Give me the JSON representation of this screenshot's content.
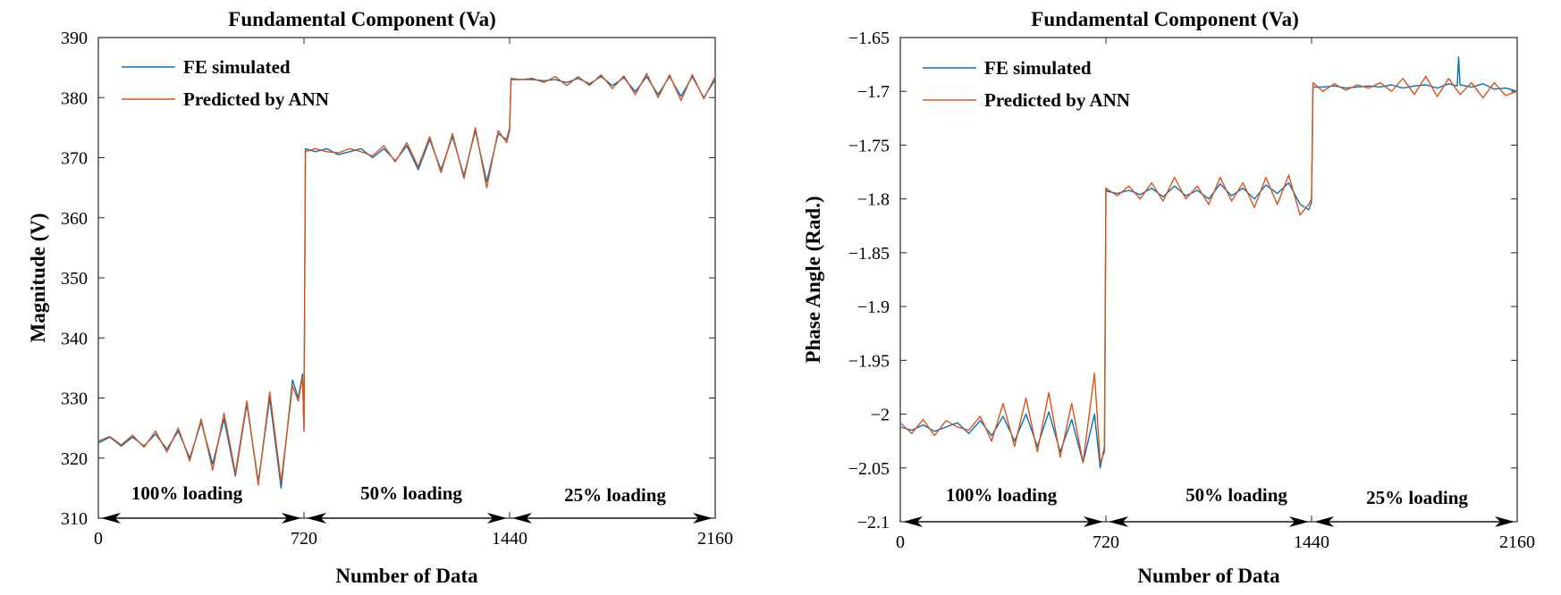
{
  "chart_data": [
    {
      "type": "line",
      "title": "Fundamental Component (Va)",
      "xlabel": "Number of Data",
      "ylabel": "Magnitude  (V)",
      "xlim": [
        0,
        2160
      ],
      "ylim": [
        310,
        390
      ],
      "xticks": [
        0,
        720,
        1440,
        2160
      ],
      "yticks": [
        310,
        320,
        330,
        340,
        350,
        360,
        370,
        380,
        390
      ],
      "ytick_labels": [
        "310",
        "320",
        "330",
        "340",
        "350",
        "360",
        "370",
        "380",
        "390"
      ],
      "grid": false,
      "legend": "top-left",
      "annotations": [
        "100% loading",
        "50% loading",
        "25% loading"
      ],
      "series": [
        {
          "name": "FE simulated",
          "color": "#0072BD",
          "x": [
            0,
            40,
            80,
            120,
            160,
            200,
            240,
            280,
            320,
            360,
            400,
            440,
            480,
            520,
            560,
            600,
            640,
            680,
            700,
            715,
            720,
            725,
            760,
            800,
            840,
            880,
            920,
            960,
            1000,
            1040,
            1080,
            1120,
            1160,
            1200,
            1240,
            1280,
            1320,
            1360,
            1400,
            1430,
            1440,
            1445,
            1480,
            1520,
            1560,
            1600,
            1640,
            1680,
            1720,
            1760,
            1800,
            1840,
            1880,
            1920,
            1960,
            2000,
            2040,
            2080,
            2120,
            2160
          ],
          "y": [
            322.5,
            323.5,
            322,
            323.5,
            322,
            324,
            321.5,
            324.5,
            320,
            326,
            319,
            326.5,
            317,
            329,
            316,
            330,
            315,
            333,
            330,
            334,
            325,
            371.5,
            371,
            371.5,
            370.5,
            371,
            371.5,
            370,
            371.5,
            369.5,
            372,
            368,
            373,
            368,
            373.5,
            367,
            374.5,
            366,
            374,
            373,
            375,
            383,
            383,
            383,
            382.8,
            383,
            382.5,
            383.2,
            382.3,
            383.5,
            382,
            383.3,
            381,
            383.5,
            380.5,
            383.5,
            380.2,
            383.5,
            380,
            383
          ]
        },
        {
          "name": "Predicted by ANN",
          "color": "#D95319",
          "x": [
            0,
            40,
            80,
            120,
            160,
            200,
            240,
            280,
            320,
            360,
            400,
            440,
            480,
            520,
            560,
            600,
            640,
            680,
            700,
            715,
            720,
            725,
            760,
            800,
            840,
            880,
            920,
            960,
            1000,
            1040,
            1080,
            1120,
            1160,
            1200,
            1240,
            1280,
            1320,
            1360,
            1400,
            1430,
            1440,
            1445,
            1480,
            1520,
            1560,
            1600,
            1640,
            1680,
            1720,
            1760,
            1800,
            1840,
            1880,
            1920,
            1960,
            2000,
            2040,
            2080,
            2120,
            2160
          ],
          "y": [
            322.8,
            323.6,
            322.2,
            323.8,
            321.8,
            324.5,
            321,
            325,
            319.5,
            326.5,
            318,
            327.5,
            317.5,
            329.5,
            315.5,
            331,
            316,
            332,
            329.5,
            333.5,
            324.5,
            371,
            371.5,
            371,
            370.8,
            371.5,
            371,
            370.3,
            372,
            369.3,
            372.5,
            368.5,
            373.5,
            367.5,
            374,
            366.5,
            375,
            365,
            374.5,
            372.5,
            374.5,
            383.2,
            383,
            383.2,
            382.5,
            383.5,
            382,
            383.5,
            382,
            383.8,
            381.5,
            383.6,
            380.5,
            384,
            380,
            383.8,
            379.5,
            383.8,
            379.8,
            383.5
          ]
        }
      ]
    },
    {
      "type": "line",
      "title": "Fundamental Component (Va)",
      "xlabel": "Number of Data",
      "ylabel": "Phase Angle (Rad.)",
      "xlim": [
        0,
        2160
      ],
      "ylim": [
        -2.1,
        -1.65
      ],
      "xticks": [
        0,
        720,
        1440,
        2160
      ],
      "yticks": [
        -2.1,
        -2.05,
        -2,
        -1.95,
        -1.9,
        -1.85,
        -1.8,
        -1.75,
        -1.7,
        -1.65
      ],
      "ytick_labels": [
        "−2.1",
        "−2.05",
        "−2",
        "−1.95",
        "−1.9",
        "−1.85",
        "−1.8",
        "−1.75",
        "−1.7",
        "−1.65"
      ],
      "grid": false,
      "legend": "top-left",
      "annotations": [
        "100% loading",
        "50% loading",
        "25% loading"
      ],
      "series": [
        {
          "name": "FE simulated",
          "color": "#0072BD",
          "x": [
            0,
            40,
            80,
            120,
            160,
            200,
            240,
            280,
            320,
            360,
            400,
            440,
            480,
            520,
            560,
            600,
            640,
            680,
            700,
            715,
            720,
            725,
            760,
            800,
            840,
            880,
            920,
            960,
            1000,
            1040,
            1080,
            1120,
            1160,
            1200,
            1240,
            1280,
            1320,
            1360,
            1400,
            1430,
            1440,
            1445,
            1480,
            1520,
            1560,
            1600,
            1640,
            1680,
            1720,
            1760,
            1800,
            1840,
            1880,
            1920,
            1950,
            1955,
            1960,
            2000,
            2040,
            2080,
            2120,
            2160
          ],
          "y": [
            -2.012,
            -2.015,
            -2.01,
            -2.016,
            -2.012,
            -2.008,
            -2.018,
            -2.006,
            -2.02,
            -2.002,
            -2.025,
            -2,
            -2.03,
            -1.998,
            -2.035,
            -2.005,
            -2.045,
            -2,
            -2.05,
            -2.03,
            -1.79,
            -1.793,
            -1.795,
            -1.792,
            -1.796,
            -1.79,
            -1.798,
            -1.788,
            -1.797,
            -1.792,
            -1.8,
            -1.786,
            -1.797,
            -1.79,
            -1.8,
            -1.787,
            -1.795,
            -1.785,
            -1.805,
            -1.81,
            -1.803,
            -1.696,
            -1.696,
            -1.695,
            -1.697,
            -1.696,
            -1.695,
            -1.696,
            -1.694,
            -1.697,
            -1.695,
            -1.694,
            -1.697,
            -1.693,
            -1.695,
            -1.668,
            -1.694,
            -1.696,
            -1.693,
            -1.698,
            -1.697,
            -1.7
          ]
        },
        {
          "name": "Predicted by ANN",
          "color": "#D95319",
          "x": [
            0,
            40,
            80,
            120,
            160,
            200,
            240,
            280,
            320,
            360,
            400,
            440,
            480,
            520,
            560,
            600,
            640,
            680,
            700,
            715,
            720,
            725,
            760,
            800,
            840,
            880,
            920,
            960,
            1000,
            1040,
            1080,
            1120,
            1160,
            1200,
            1240,
            1280,
            1320,
            1360,
            1400,
            1430,
            1440,
            1445,
            1480,
            1520,
            1560,
            1600,
            1640,
            1680,
            1720,
            1760,
            1800,
            1840,
            1880,
            1920,
            1960,
            2000,
            2040,
            2080,
            2120,
            2160
          ],
          "y": [
            -2.008,
            -2.018,
            -2.005,
            -2.02,
            -2.006,
            -2.012,
            -2.015,
            -2.002,
            -2.025,
            -1.99,
            -2.03,
            -1.985,
            -2.035,
            -1.98,
            -2.04,
            -1.99,
            -2.045,
            -1.962,
            -2.045,
            -2.035,
            -1.79,
            -1.791,
            -1.797,
            -1.788,
            -1.8,
            -1.785,
            -1.802,
            -1.78,
            -1.8,
            -1.788,
            -1.805,
            -1.78,
            -1.802,
            -1.785,
            -1.808,
            -1.78,
            -1.805,
            -1.778,
            -1.815,
            -1.805,
            -1.8,
            -1.692,
            -1.7,
            -1.693,
            -1.699,
            -1.694,
            -1.697,
            -1.692,
            -1.7,
            -1.688,
            -1.703,
            -1.686,
            -1.705,
            -1.688,
            -1.703,
            -1.692,
            -1.706,
            -1.692,
            -1.704,
            -1.7
          ]
        }
      ]
    }
  ]
}
